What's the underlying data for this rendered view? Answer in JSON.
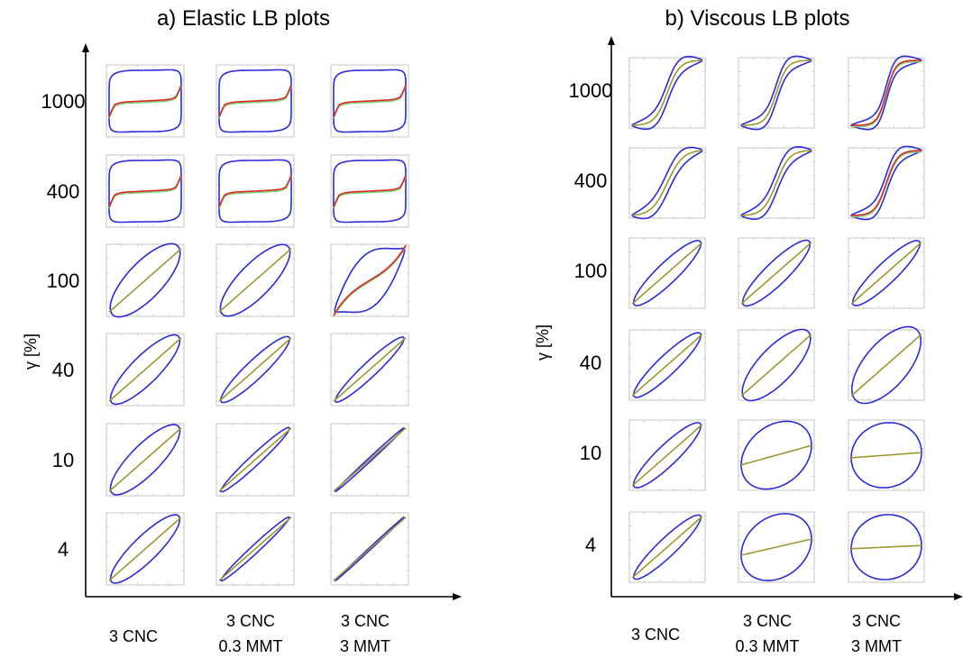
{
  "panels": [
    {
      "title": "a) Elastic LB plots",
      "ylabel": "γ [%]",
      "rows": [
        "1000",
        "400",
        "100",
        "40",
        "10",
        "4"
      ],
      "cols": [
        [
          "3 CNC"
        ],
        [
          "3 CNC",
          "0.3 MMT"
        ],
        [
          "3 CNC",
          "3 MMT"
        ]
      ]
    },
    {
      "title": "b) Viscous LB plots",
      "ylabel": "γ [%]",
      "rows": [
        "1000",
        "400",
        "100",
        "40",
        "10",
        "4"
      ],
      "cols": [
        [
          "3 CNC"
        ],
        [
          "3 CNC",
          "0.3 MMT"
        ],
        [
          "3 CNC",
          "3 MMT"
        ]
      ]
    }
  ],
  "colors": {
    "loop": "#2b2bd9",
    "elastic_stress": "#e0271f",
    "viscous_stress": "#f0a020",
    "midline": "#9c9830",
    "green": "#7ed07e"
  },
  "chart_data": [
    {
      "type": "line",
      "title": "a) Elastic LB plots",
      "ylabel": "γ [%]",
      "xlabel": "",
      "rows_strain_percent": [
        1000,
        400,
        100,
        40,
        10,
        4
      ],
      "columns": [
        "3 CNC",
        "3 CNC 0.3 MMT",
        "3 CNC 3 MMT"
      ],
      "description": "Grid of Lissajous-Bowditch loops (blue) with elastic stress midlines",
      "grid": true
    },
    {
      "type": "line",
      "title": "b) Viscous LB plots",
      "ylabel": "γ [%]",
      "xlabel": "",
      "rows_strain_percent": [
        1000,
        400,
        100,
        40,
        10,
        4
      ],
      "columns": [
        "3 CNC",
        "3 CNC 0.3 MMT",
        "3 CNC 3 MMT"
      ],
      "description": "Grid of Lissajous-Bowditch loops (blue) with viscous stress midlines",
      "grid": true
    }
  ]
}
